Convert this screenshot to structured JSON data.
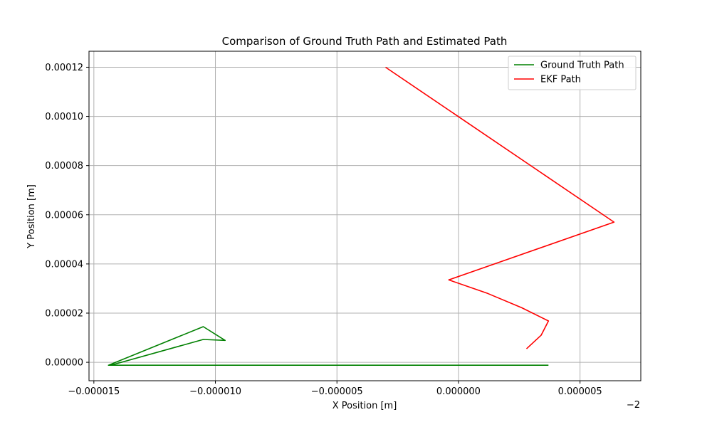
{
  "chart_data": {
    "type": "line",
    "title": "Comparison of Ground Truth Path and Estimated Path",
    "xlabel": "X Position [m]",
    "ylabel": "Y Position [m]",
    "x_offset_label": "−2",
    "xlim": [
      -1.52e-05,
      7.5e-06
    ],
    "ylim": [
      -7.5e-06,
      0.0001265
    ],
    "x_ticks": [
      -1.5e-05,
      -1e-05,
      -5e-06,
      0.0,
      5e-06
    ],
    "x_tick_labels": [
      "−0.000015",
      "−0.000010",
      "−0.000005",
      "0.000000",
      "0.000005"
    ],
    "y_ticks": [
      0.0,
      2e-05,
      4e-05,
      6e-05,
      8e-05,
      0.0001,
      0.00012
    ],
    "y_tick_labels": [
      "0.00000",
      "0.00002",
      "0.00004",
      "0.00006",
      "0.00008",
      "0.00010",
      "0.00012"
    ],
    "grid": true,
    "legend_position": "top-right",
    "series": [
      {
        "name": "Ground Truth Path",
        "color": "#008000",
        "points": [
          [
            -1.28e-05,
            -1.2e-06
          ],
          [
            -1.43e-05,
            -1.2e-06
          ],
          [
            -1.05e-05,
            9.3e-06
          ],
          [
            -9.6e-06,
            8.9e-06
          ],
          [
            -1.05e-05,
            1.45e-05
          ],
          [
            -1.44e-05,
            -1.2e-06
          ],
          [
            3.7e-06,
            -1.2e-06
          ]
        ]
      },
      {
        "name": "EKF Path",
        "color": "#ff0000",
        "points": [
          [
            -3e-06,
            0.00012
          ],
          [
            6.4e-06,
            5.7e-05
          ],
          [
            -4e-07,
            3.35e-05
          ],
          [
            1.2e-06,
            2.8e-05
          ],
          [
            2.6e-06,
            2.22e-05
          ],
          [
            3.7e-06,
            1.68e-05
          ],
          [
            3.4e-06,
            1.1e-05
          ],
          [
            2.8e-06,
            5.5e-06
          ]
        ]
      }
    ]
  }
}
